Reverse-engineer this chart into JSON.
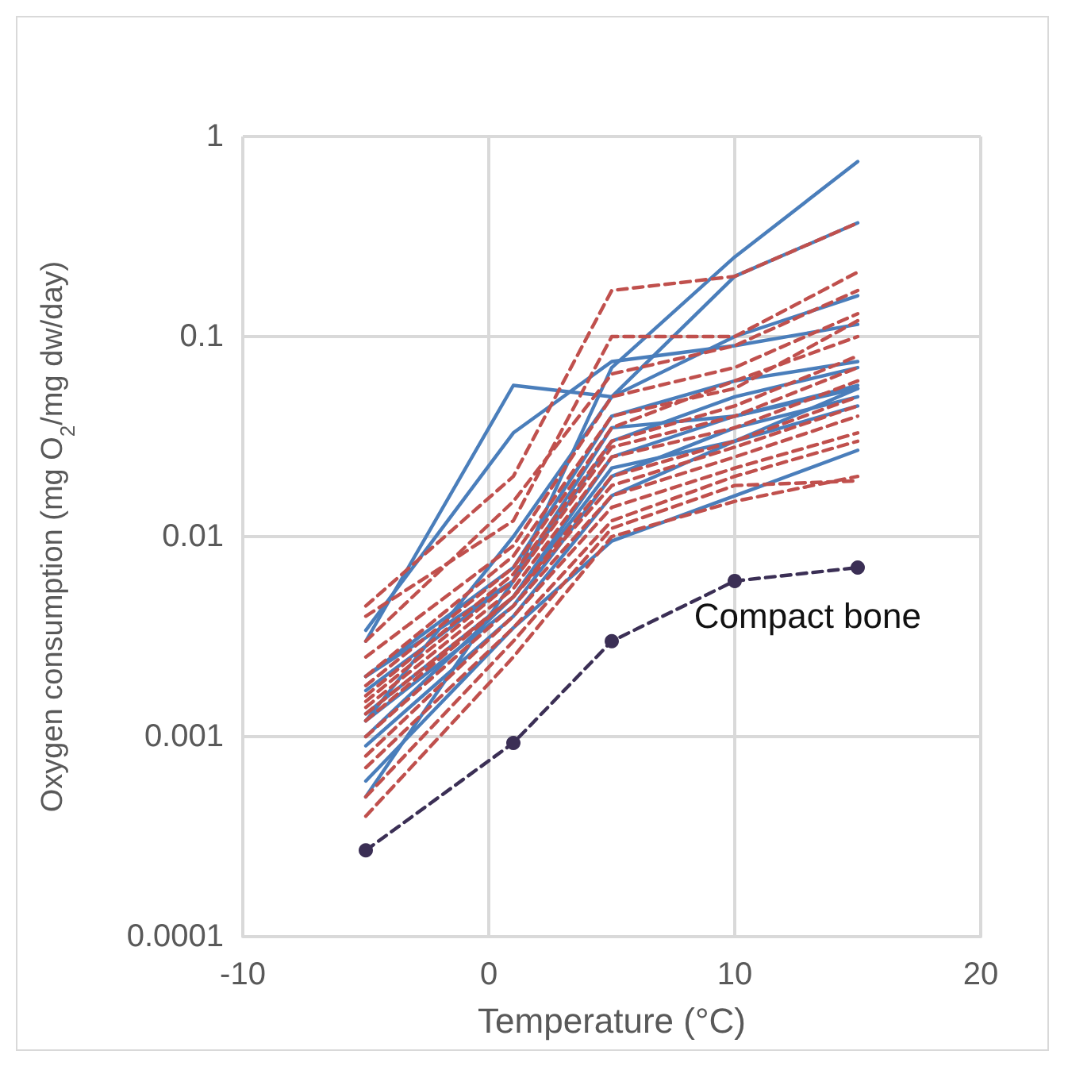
{
  "chart_data": {
    "type": "line",
    "xlabel": "Temperature (°C)",
    "ylabel": "Oxygen consumption (mg O$_{2}$/mg dw/day)",
    "x": [
      -5,
      1,
      5,
      10,
      15
    ],
    "xlim": [
      -10,
      20
    ],
    "xticks": [
      -10,
      0,
      10,
      20
    ],
    "ylim": [
      0.0001,
      1
    ],
    "yticks": [
      0.0001,
      0.001,
      0.01,
      0.1,
      1
    ],
    "log": "y",
    "grid": true,
    "legend": false,
    "marker": "none",
    "series": [
      {
        "color": "#4a7ebb",
        "line_style": "solid",
        "values": [
          0.0005,
          0.006,
          0.07,
          0.25,
          0.75
        ]
      },
      {
        "color": "#4a7ebb",
        "line_style": "solid",
        "values": [
          0.0012,
          0.01,
          0.05,
          0.2,
          0.37
        ]
      },
      {
        "color": "#4a7ebb",
        "line_style": "solid",
        "values": [
          0.003,
          0.057,
          0.05,
          0.1,
          0.16
        ]
      },
      {
        "color": "#4a7ebb",
        "line_style": "solid",
        "values": [
          0.0034,
          0.033,
          0.075,
          0.09,
          0.115
        ]
      },
      {
        "color": "#4a7ebb",
        "line_style": "solid",
        "values": [
          0.002,
          0.007,
          0.04,
          0.06,
          0.075
        ]
      },
      {
        "color": "#4a7ebb",
        "line_style": "solid",
        "values": [
          0.0017,
          0.006,
          0.03,
          0.05,
          0.07
        ]
      },
      {
        "color": "#4a7ebb",
        "line_style": "solid",
        "values": [
          0.0013,
          0.005,
          0.025,
          0.04,
          0.055
        ]
      },
      {
        "color": "#4a7ebb",
        "line_style": "solid",
        "values": [
          0.001,
          0.005,
          0.022,
          0.03,
          0.055
        ]
      },
      {
        "color": "#4a7ebb",
        "line_style": "solid",
        "values": [
          0.0012,
          0.0045,
          0.02,
          0.035,
          0.05
        ]
      },
      {
        "color": "#4a7ebb",
        "line_style": "solid",
        "values": [
          0.0009,
          0.004,
          0.016,
          0.03,
          0.045
        ]
      },
      {
        "color": "#4a7ebb",
        "line_style": "solid",
        "values": [
          0.0006,
          0.0035,
          0.0095,
          0.016,
          0.027
        ]
      },
      {
        "color": "#4a7ebb",
        "line_style": "solid",
        "values": [
          0.002,
          0.006,
          0.035,
          0.04,
          0.057
        ]
      },
      {
        "color": "#c0504d",
        "line_style": "dashed",
        "values": [
          0.0045,
          0.02,
          0.17,
          0.2,
          0.37
        ]
      },
      {
        "color": "#c0504d",
        "line_style": "dashed",
        "values": [
          0.004,
          0.012,
          0.1,
          0.1,
          0.21
        ]
      },
      {
        "color": "#c0504d",
        "line_style": "dashed",
        "values": [
          0.003,
          0.015,
          0.065,
          0.09,
          0.17
        ]
      },
      {
        "color": "#c0504d",
        "line_style": "dashed",
        "values": [
          0.0025,
          0.009,
          0.05,
          0.07,
          0.13
        ]
      },
      {
        "color": "#c0504d",
        "line_style": "dashed",
        "values": [
          0.002,
          0.008,
          0.04,
          0.055,
          0.12
        ]
      },
      {
        "color": "#c0504d",
        "line_style": "dashed",
        "values": [
          0.0018,
          0.007,
          0.035,
          0.06,
          0.1
        ]
      },
      {
        "color": "#c0504d",
        "line_style": "dashed",
        "values": [
          0.0016,
          0.0065,
          0.03,
          0.045,
          0.08
        ]
      },
      {
        "color": "#c0504d",
        "line_style": "dashed",
        "values": [
          0.0015,
          0.006,
          0.028,
          0.04,
          0.07
        ]
      },
      {
        "color": "#c0504d",
        "line_style": "dashed",
        "values": [
          0.0014,
          0.0055,
          0.025,
          0.035,
          0.06
        ]
      },
      {
        "color": "#c0504d",
        "line_style": "dashed",
        "values": [
          0.0013,
          0.005,
          0.02,
          0.03,
          0.05
        ]
      },
      {
        "color": "#c0504d",
        "line_style": "dashed",
        "values": [
          0.0012,
          0.005,
          0.018,
          0.028,
          0.045
        ]
      },
      {
        "color": "#c0504d",
        "line_style": "dashed",
        "values": [
          0.001,
          0.0045,
          0.016,
          0.025,
          0.04
        ]
      },
      {
        "color": "#c0504d",
        "line_style": "dashed",
        "values": [
          0.0008,
          0.004,
          0.014,
          0.022,
          0.033
        ]
      },
      {
        "color": "#c0504d",
        "line_style": "dashed",
        "values": [
          0.0007,
          0.0035,
          0.012,
          0.02,
          0.03
        ]
      },
      {
        "color": "#c0504d",
        "line_style": "dashed",
        "values": [
          0.0005,
          0.003,
          0.011,
          0.018,
          0.019
        ]
      },
      {
        "color": "#c0504d",
        "line_style": "dashed",
        "values": [
          0.0004,
          0.0025,
          0.01,
          0.015,
          0.02
        ]
      },
      {
        "name": "Compact bone",
        "color": "#3b2f55",
        "line_style": "dashed",
        "marker": "circle",
        "values": [
          0.00027,
          0.00093,
          0.003,
          0.006,
          0.007
        ]
      }
    ]
  }
}
